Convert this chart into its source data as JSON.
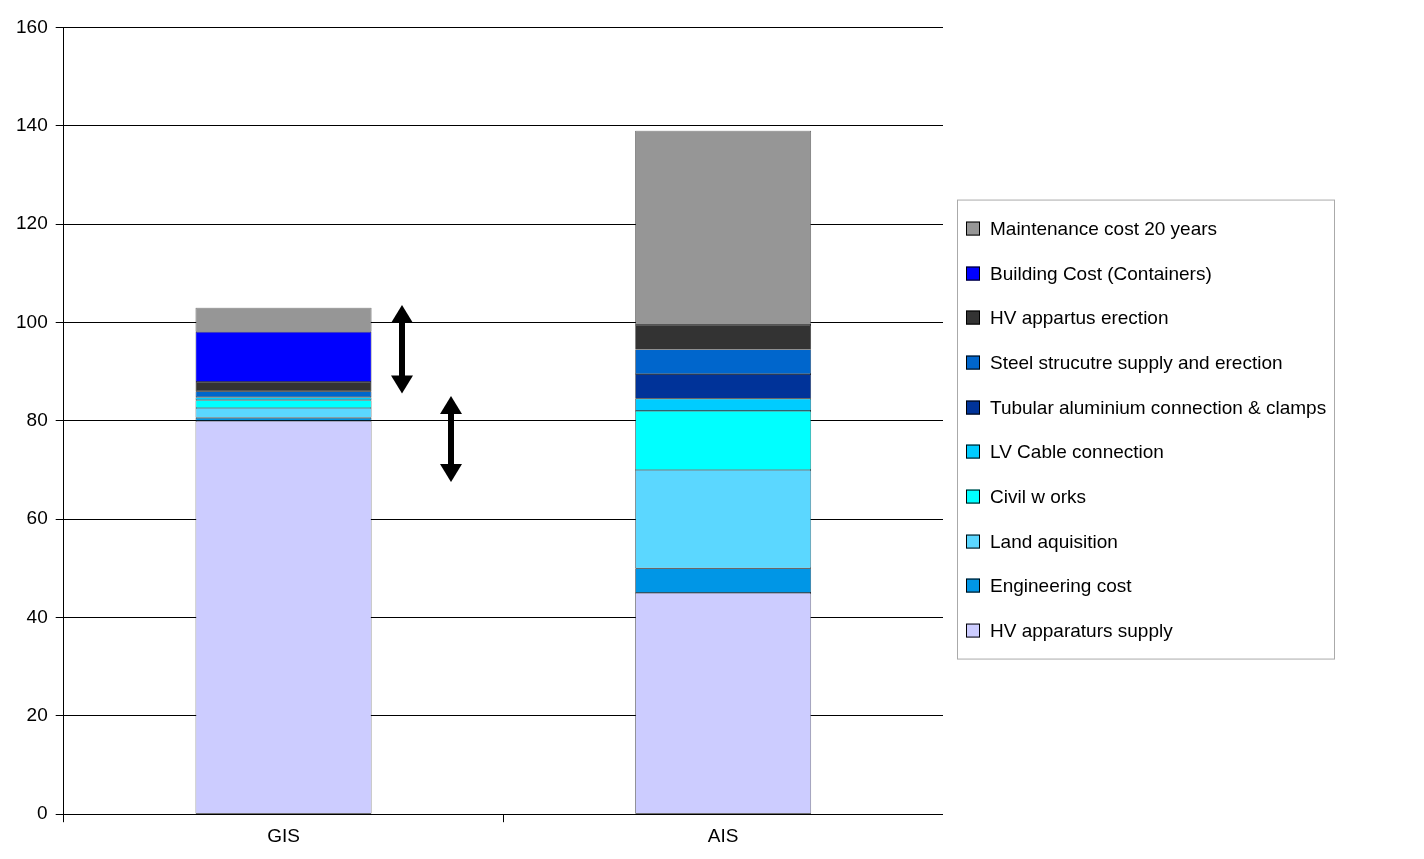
{
  "chart_data": {
    "type": "bar",
    "stacked": true,
    "categories": [
      "GIS",
      "AIS"
    ],
    "series": [
      {
        "name": "HV apparaturs supply",
        "color": "#ccccff",
        "values": [
          80,
          45
        ]
      },
      {
        "name": "Engineering cost",
        "color": "#0096e6",
        "values": [
          0.6,
          5
        ]
      },
      {
        "name": "Land aquisition",
        "color": "#5bd7ff",
        "values": [
          2,
          20
        ]
      },
      {
        "name": "Civil w orks",
        "color": "#00ffff",
        "values": [
          1.6,
          12
        ]
      },
      {
        "name": "LV Cable  connection",
        "color": "#00ccff",
        "values": [
          0.6,
          2.5
        ]
      },
      {
        "name": "Tubular aluminium connection & clamps",
        "color": "#003399",
        "values": [
          0,
          5
        ]
      },
      {
        "name": "Steel strucutre supply and erection",
        "color": "#0066cc",
        "values": [
          1.2,
          5
        ]
      },
      {
        "name": "HV appartus erection",
        "color": "#333333",
        "values": [
          1.9,
          5
        ]
      },
      {
        "name": "Building Cost (Containers)",
        "color": "#0000ff",
        "values": [
          10.2,
          0
        ]
      },
      {
        "name": "Maintenance cost 20 years",
        "color": "#969696",
        "values": [
          4.9,
          39.5
        ]
      }
    ],
    "ylim": [
      0,
      160
    ],
    "yticks": [
      0,
      20,
      40,
      60,
      80,
      100,
      120,
      140,
      160
    ],
    "grid": "y",
    "legend": "right"
  }
}
